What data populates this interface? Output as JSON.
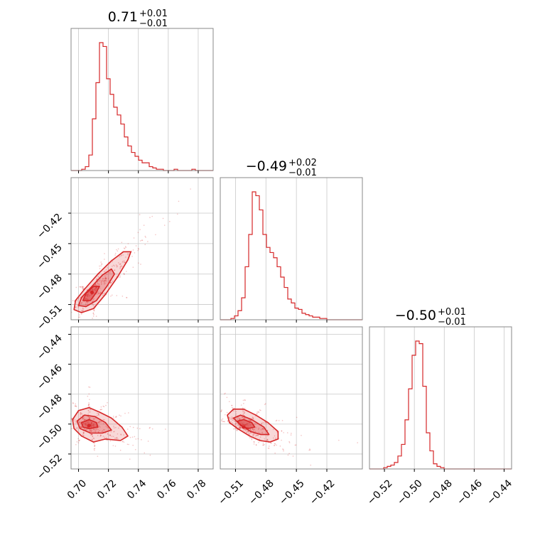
{
  "chart_data": {
    "type": "corner",
    "color": "#d62728",
    "grid": true,
    "parameters": [
      {
        "title_value": "0.71",
        "title_plus": "+0.01",
        "title_minus": "−0.01",
        "range": [
          0.695,
          0.79
        ],
        "ticks": [
          0.7,
          0.72,
          0.74,
          0.76,
          0.78
        ],
        "tick_labels": [
          "0.70",
          "0.72",
          "0.74",
          "0.76",
          "0.78"
        ],
        "hist": [
          0,
          0,
          0,
          1,
          3,
          12,
          40,
          68,
          99,
          96,
          71,
          59,
          49,
          43,
          36,
          26,
          19,
          14,
          11,
          8,
          6,
          6,
          3,
          2,
          1,
          1,
          0,
          0,
          0,
          1,
          0,
          0,
          0,
          0,
          1,
          0,
          0,
          0,
          0,
          0
        ]
      },
      {
        "title_value": "−0.49",
        "title_plus": "+0.02",
        "title_minus": "−0.01",
        "range": [
          -0.525,
          -0.385
        ],
        "ticks": [
          -0.51,
          -0.48,
          -0.45,
          -0.42
        ],
        "tick_labels": [
          "−0.51",
          "−0.48",
          "−0.45",
          "−0.42"
        ],
        "hist": [
          0,
          0,
          0,
          1,
          3,
          7,
          17,
          41,
          66,
          99,
          96,
          85,
          66,
          56,
          52,
          48,
          41,
          33,
          25,
          16,
          13,
          9,
          8,
          5,
          4,
          3,
          2,
          2,
          1,
          1,
          0,
          0,
          0,
          0,
          0,
          0,
          0,
          0,
          0,
          0
        ]
      },
      {
        "title_value": "−0.50",
        "title_plus": "+0.01",
        "title_minus": "−0.01",
        "range": [
          -0.53,
          -0.435
        ],
        "ticks": [
          -0.52,
          -0.5,
          -0.48,
          -0.46,
          -0.44
        ],
        "tick_labels": [
          "−0.52",
          "−0.50",
          "−0.48",
          "−0.46",
          "−0.44"
        ],
        "hist": [
          0,
          0,
          0,
          0,
          1,
          2,
          3,
          5,
          10,
          19,
          38,
          62,
          88,
          99,
          97,
          64,
          28,
          14,
          4,
          2,
          1,
          0,
          0,
          0,
          0,
          0,
          0,
          0,
          0,
          0,
          0,
          0,
          0,
          0,
          0,
          0,
          0,
          0,
          0,
          0
        ]
      }
    ],
    "pairs": [
      {
        "row": 1,
        "col": 0,
        "center": [
          0.709,
          -0.498
        ],
        "contours": [
          {
            "level": "outer",
            "points": [
              [
                0.697,
                -0.515
              ],
              [
                0.702,
                -0.518
              ],
              [
                0.71,
                -0.514
              ],
              [
                0.718,
                -0.5
              ],
              [
                0.726,
                -0.483
              ],
              [
                0.733,
                -0.466
              ],
              [
                0.735,
                -0.458
              ],
              [
                0.73,
                -0.458
              ],
              [
                0.722,
                -0.467
              ],
              [
                0.713,
                -0.48
              ],
              [
                0.704,
                -0.495
              ],
              [
                0.698,
                -0.506
              ]
            ]
          },
          {
            "level": "middle",
            "points": [
              [
                0.7,
                -0.511
              ],
              [
                0.705,
                -0.512
              ],
              [
                0.712,
                -0.506
              ],
              [
                0.719,
                -0.492
              ],
              [
                0.724,
                -0.48
              ],
              [
                0.722,
                -0.475
              ],
              [
                0.716,
                -0.481
              ],
              [
                0.709,
                -0.492
              ],
              [
                0.702,
                -0.503
              ]
            ]
          },
          {
            "level": "inner",
            "points": [
              [
                0.703,
                -0.506
              ],
              [
                0.708,
                -0.506
              ],
              [
                0.712,
                -0.498
              ],
              [
                0.714,
                -0.492
              ],
              [
                0.71,
                -0.492
              ],
              [
                0.705,
                -0.499
              ]
            ]
          }
        ]
      },
      {
        "row": 2,
        "col": 0,
        "center": [
          0.707,
          -0.501
        ],
        "contours": [
          {
            "level": "outer",
            "points": [
              [
                0.696,
                -0.497
              ],
              [
                0.7,
                -0.491
              ],
              [
                0.707,
                -0.489
              ],
              [
                0.714,
                -0.492
              ],
              [
                0.722,
                -0.496
              ],
              [
                0.729,
                -0.502
              ],
              [
                0.733,
                -0.508
              ],
              [
                0.728,
                -0.511
              ],
              [
                0.718,
                -0.51
              ],
              [
                0.71,
                -0.512
              ],
              [
                0.702,
                -0.508
              ],
              [
                0.697,
                -0.503
              ]
            ]
          },
          {
            "level": "middle",
            "points": [
              [
                0.699,
                -0.498
              ],
              [
                0.704,
                -0.494
              ],
              [
                0.711,
                -0.495
              ],
              [
                0.718,
                -0.499
              ],
              [
                0.722,
                -0.504
              ],
              [
                0.716,
                -0.506
              ],
              [
                0.708,
                -0.506
              ],
              [
                0.701,
                -0.503
              ]
            ]
          },
          {
            "level": "inner",
            "points": [
              [
                0.702,
                -0.499
              ],
              [
                0.707,
                -0.497
              ],
              [
                0.712,
                -0.499
              ],
              [
                0.713,
                -0.502
              ],
              [
                0.707,
                -0.503
              ],
              [
                0.703,
                -0.502
              ]
            ]
          }
        ]
      },
      {
        "row": 2,
        "col": 1,
        "center": [
          -0.502,
          -0.502
        ],
        "contours": [
          {
            "level": "outer",
            "points": [
              [
                -0.518,
                -0.494
              ],
              [
                -0.512,
                -0.49
              ],
              [
                -0.502,
                -0.49
              ],
              [
                -0.49,
                -0.494
              ],
              [
                -0.478,
                -0.499
              ],
              [
                -0.468,
                -0.505
              ],
              [
                -0.468,
                -0.51
              ],
              [
                -0.476,
                -0.512
              ],
              [
                -0.486,
                -0.511
              ],
              [
                -0.496,
                -0.508
              ],
              [
                -0.508,
                -0.503
              ],
              [
                -0.516,
                -0.499
              ]
            ]
          },
          {
            "level": "middle",
            "points": [
              [
                -0.512,
                -0.496
              ],
              [
                -0.505,
                -0.494
              ],
              [
                -0.494,
                -0.497
              ],
              [
                -0.482,
                -0.502
              ],
              [
                -0.477,
                -0.507
              ],
              [
                -0.485,
                -0.507
              ],
              [
                -0.495,
                -0.505
              ],
              [
                -0.506,
                -0.5
              ]
            ]
          },
          {
            "level": "inner",
            "points": [
              [
                -0.508,
                -0.498
              ],
              [
                -0.502,
                -0.497
              ],
              [
                -0.494,
                -0.499
              ],
              [
                -0.491,
                -0.502
              ],
              [
                -0.498,
                -0.503
              ],
              [
                -0.505,
                -0.501
              ]
            ]
          }
        ]
      }
    ]
  }
}
